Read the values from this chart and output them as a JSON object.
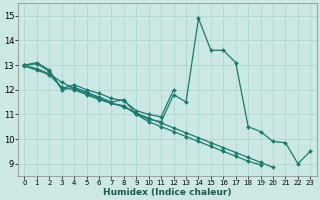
{
  "title": "",
  "xlabel": "Humidex (Indice chaleur)",
  "ylabel": "",
  "background_color": "#cce8e5",
  "grid_color": "#aad4cf",
  "line_color": "#1a7a6e",
  "xlim": [
    -0.5,
    23.5
  ],
  "ylim": [
    8.5,
    15.5
  ],
  "xticks": [
    0,
    1,
    2,
    3,
    4,
    5,
    6,
    7,
    8,
    9,
    10,
    11,
    12,
    13,
    14,
    15,
    16,
    17,
    18,
    19,
    20,
    21,
    22,
    23
  ],
  "yticks": [
    9,
    10,
    11,
    12,
    13,
    14,
    15
  ],
  "series": [
    {
      "x": [
        0,
        1,
        2,
        3,
        4,
        5,
        6,
        7,
        8,
        9,
        10,
        11,
        12,
        13,
        14,
        15,
        16,
        17,
        18,
        19,
        20,
        21,
        22,
        23
      ],
      "y": [
        13.0,
        13.1,
        12.8,
        12.0,
        12.1,
        11.9,
        11.7,
        11.5,
        11.6,
        11.0,
        10.8,
        10.7,
        11.8,
        11.5,
        14.9,
        13.6,
        13.6,
        13.1,
        10.5,
        10.3,
        9.9,
        9.85,
        9.0,
        9.5
      ]
    },
    {
      "x": [
        0,
        1,
        2,
        3,
        4,
        5,
        6,
        7,
        8,
        9,
        10,
        11,
        12
      ],
      "y": [
        13.0,
        13.05,
        12.75,
        12.05,
        12.2,
        12.0,
        11.85,
        11.65,
        11.55,
        11.15,
        11.0,
        10.9,
        12.0
      ]
    },
    {
      "x": [
        0,
        1,
        2,
        3,
        4,
        5,
        6,
        7,
        8,
        9,
        10,
        11,
        12,
        13,
        14,
        15,
        16,
        17,
        18,
        19,
        20,
        21,
        22,
        23
      ],
      "y": [
        13.0,
        12.85,
        12.65,
        12.3,
        12.05,
        11.85,
        11.65,
        11.45,
        11.3,
        11.05,
        10.85,
        10.65,
        10.45,
        10.25,
        10.05,
        9.85,
        9.65,
        9.45,
        9.25,
        9.05,
        8.85,
        null,
        null,
        null
      ]
    },
    {
      "x": [
        0,
        1,
        2,
        3,
        4,
        5,
        6,
        7,
        8,
        9,
        10,
        11,
        12,
        13,
        14,
        15,
        16,
        17,
        18,
        19,
        20,
        21,
        22,
        23
      ],
      "y": [
        12.95,
        12.8,
        12.6,
        12.1,
        12.0,
        11.8,
        11.6,
        11.45,
        11.35,
        11.0,
        10.7,
        10.5,
        10.3,
        10.1,
        9.9,
        9.7,
        9.5,
        9.3,
        9.1,
        8.95,
        null,
        null,
        null,
        null
      ]
    }
  ]
}
